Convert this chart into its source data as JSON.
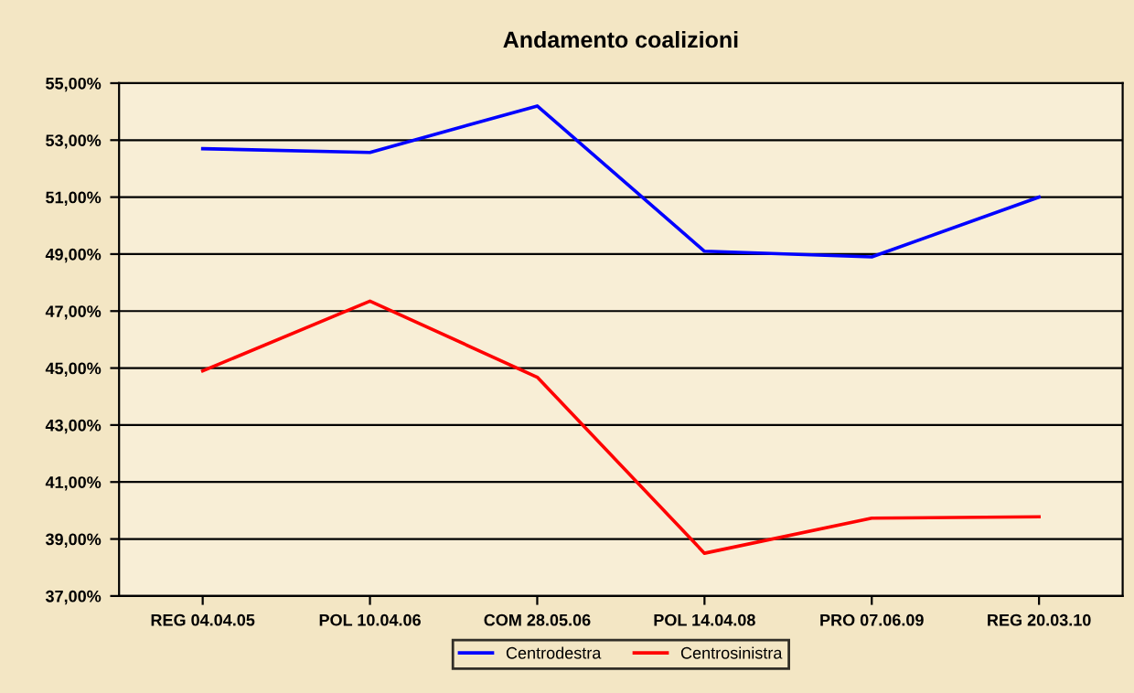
{
  "chart_data": {
    "type": "line",
    "title": "Andamento coalizioni",
    "categories": [
      "REG 04.04.05",
      "POL 10.04.06",
      "COM 28.05.06",
      "POL 14.04.08",
      "PRO 07.06.09",
      "REG 20.03.10"
    ],
    "series": [
      {
        "name": "Centrodestra",
        "color": "#0000ff",
        "values": [
          52.7,
          52.57,
          54.2,
          49.1,
          48.9,
          51.0
        ]
      },
      {
        "name": "Centrosinistra",
        "color": "#ff0000",
        "values": [
          44.9,
          47.35,
          44.68,
          38.5,
          39.73,
          39.78
        ]
      }
    ],
    "ylim": [
      37,
      55
    ],
    "yticks": [
      {
        "value": 37,
        "label": "37,00%"
      },
      {
        "value": 39,
        "label": "39,00%"
      },
      {
        "value": 41,
        "label": "41,00%"
      },
      {
        "value": 43,
        "label": "43,00%"
      },
      {
        "value": 45,
        "label": "45,00%"
      },
      {
        "value": 47,
        "label": "47,00%"
      },
      {
        "value": 49,
        "label": "49,00%"
      },
      {
        "value": 51,
        "label": "51,00%"
      },
      {
        "value": 53,
        "label": "53,00%"
      },
      {
        "value": 55,
        "label": "55,00%"
      }
    ],
    "grid": "y",
    "legend": "bottom",
    "marker": "none",
    "line_style": "solid"
  }
}
